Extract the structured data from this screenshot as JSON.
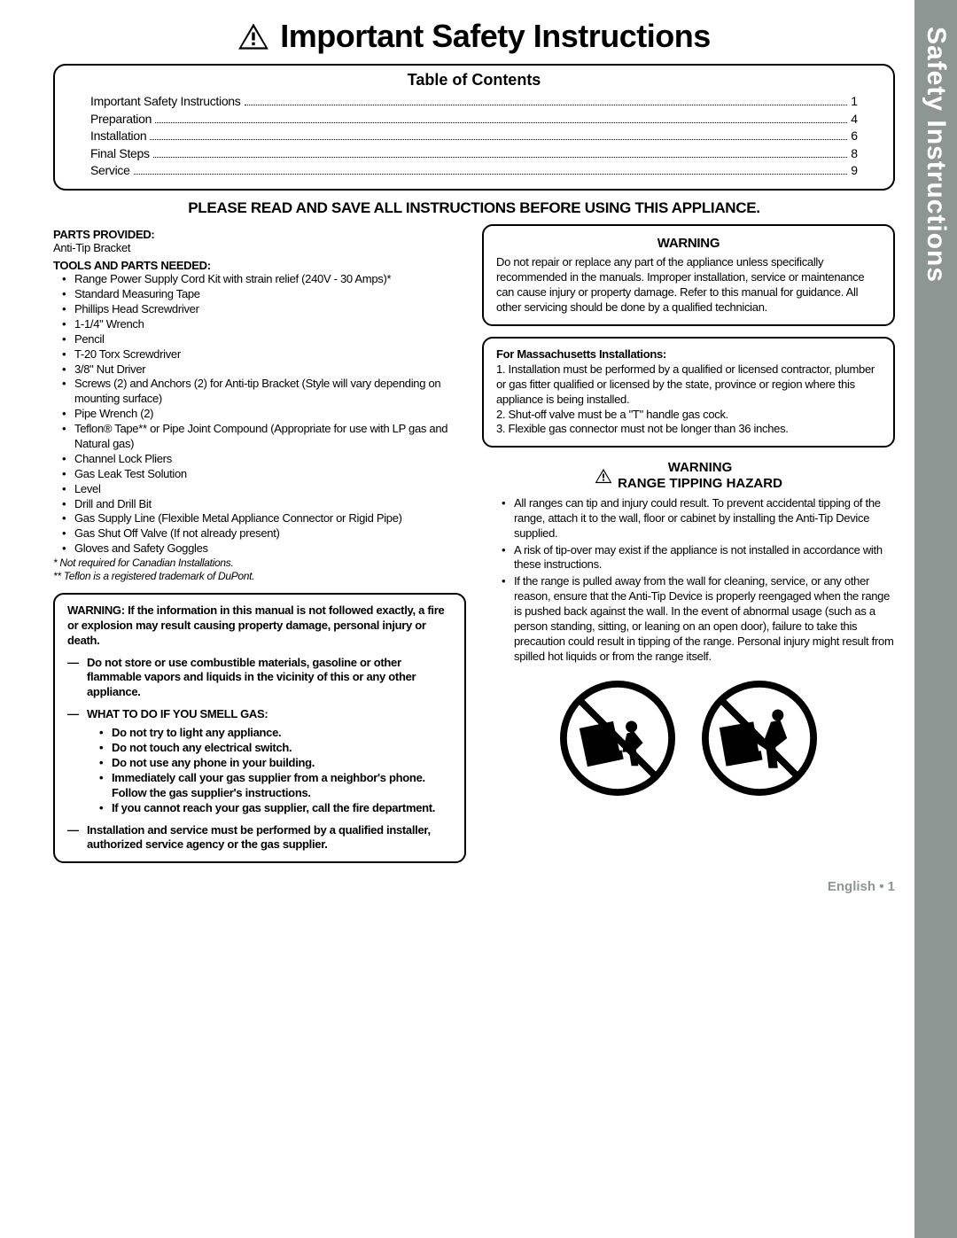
{
  "sideTab": "Safety Instructions",
  "pageTitle": "Important Safety Instructions",
  "toc": {
    "heading": "Table of Contents",
    "items": [
      {
        "label": "Important Safety Instructions",
        "page": "1"
      },
      {
        "label": "Preparation",
        "page": "4"
      },
      {
        "label": "Installation",
        "page": "6"
      },
      {
        "label": "Final Steps",
        "page": "8"
      },
      {
        "label": "Service",
        "page": "9"
      }
    ]
  },
  "readSave": "PLEASE READ AND SAVE ALL INSTRUCTIONS BEFORE USING THIS APPLIANCE.",
  "left": {
    "partsHead": "PARTS PROVIDED:",
    "partsText": "Anti-Tip Bracket",
    "toolsHead": "TOOLS AND PARTS NEEDED:",
    "tools": [
      "Range Power Supply Cord Kit with strain relief (240V - 30 Amps)*",
      "Standard Measuring Tape",
      "Phillips Head Screwdriver",
      "1-1/4\" Wrench",
      "Pencil",
      "T-20 Torx Screwdriver",
      "3/8\" Nut Driver",
      "Screws (2) and Anchors (2) for Anti-tip Bracket (Style will vary depending on mounting surface)",
      "Pipe Wrench (2)",
      "Teflon® Tape** or Pipe Joint Compound (Appropriate for use with LP gas and Natural gas)",
      "Channel Lock Pliers",
      "Gas Leak Test Solution",
      "Level",
      "Drill and Drill Bit",
      "Gas Supply Line (Flexible Metal Appliance Connector or Rigid Pipe)",
      "Gas Shut Off Valve (If not already present)",
      "Gloves and Safety Goggles"
    ],
    "footnotes": [
      "* Not required for Canadian Installations.",
      "** Teflon is a registered trademark of DuPont."
    ],
    "warningBox": {
      "lead": "WARNING: If the information in this manual is not followed exactly, a fire or explosion may result causing property damage, personal injury or death.",
      "d1": "Do not store or use combustible materials, gasoline or other flammable vapors and liquids in the vicinity of this or any other appliance.",
      "d2head": "WHAT TO DO IF YOU SMELL GAS:",
      "d2items": [
        "Do not try to light any appliance.",
        "Do not touch any electrical switch.",
        "Do not use any phone in your building.",
        "Immediately call your gas supplier from a neighbor's phone. Follow the gas supplier's instructions.",
        "If you cannot reach your gas supplier, call the fire department."
      ],
      "d3": "Installation and service must be performed by a qualified installer, authorized service agency or the gas supplier."
    }
  },
  "right": {
    "warn1": {
      "heading": "WARNING",
      "text": "Do not repair or replace any part of the appliance unless specifically recommended in the manuals. Improper installation, service or maintenance can cause injury or property damage. Refer to this manual for guidance. All other servicing should be done by a qualified technician."
    },
    "mass": {
      "heading": "For Massachusetts Installations:",
      "items": [
        "1. Installation must be performed by a qualified or licensed contractor, plumber or gas fitter qualified or licensed by the state, province or region where this appliance is being installed.",
        "2. Shut-off valve must be a \"T\" handle gas cock.",
        "3. Flexible gas connector must not be longer than 36 inches."
      ]
    },
    "tip": {
      "line1": "WARNING",
      "line2": "RANGE TIPPING HAZARD",
      "items": [
        "All ranges can tip and injury could result. To prevent accidental tipping of the range, attach it to the wall, floor or cabinet by installing the Anti-Tip Device supplied.",
        "A risk of tip-over may exist if the appliance is not installed in accordance with these instructions.",
        "If the range is pulled away from the wall for cleaning, service, or any other reason, ensure that the Anti-Tip Device is properly reengaged when the range is pushed back against the wall. In the event of abnormal usage (such as a person standing, sitting, or leaning on an open door), failure to take this precaution could result in tipping of the range. Personal injury might result from spilled hot liquids or from the range itself."
      ]
    }
  },
  "footer": "English • 1",
  "colors": {
    "sideTab": "#8e9694",
    "text": "#000000",
    "bg": "#ffffff"
  }
}
